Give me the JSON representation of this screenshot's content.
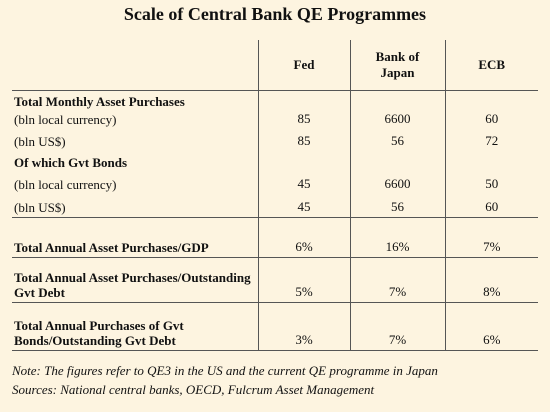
{
  "title": "Scale of Central Bank QE Programmes",
  "table": {
    "header": [
      "Fed",
      "Bank of Japan",
      "ECB"
    ],
    "rows": [
      [
        "Total Monthly Asset Purchases"
      ],
      [
        "(bln local currency)",
        "85",
        "6600",
        "60"
      ],
      [
        "(bln US$)",
        "85",
        "56",
        "72"
      ],
      [
        "Of which Gvt Bonds"
      ],
      [
        "(bln local currency)",
        "45",
        "6600",
        "50"
      ],
      [
        "(bln US$)",
        "45",
        "56",
        "60"
      ],
      [
        "Total Annual Asset Purchases/GDP",
        "6%",
        "16%",
        "7%"
      ],
      [
        "Total Annual Asset Purchases/Outstanding Gvt Debt",
        "5%",
        "7%",
        "8%"
      ],
      [
        "Total Annual Purchases of Gvt Bonds/Outstanding Gvt Debt",
        "3%",
        "7%",
        "6%"
      ]
    ]
  },
  "notes": [
    "Note: The figures refer to QE3 in the US and the current QE programme in Japan",
    "Sources: National central banks, OECD, Fulcrum Asset Management"
  ]
}
